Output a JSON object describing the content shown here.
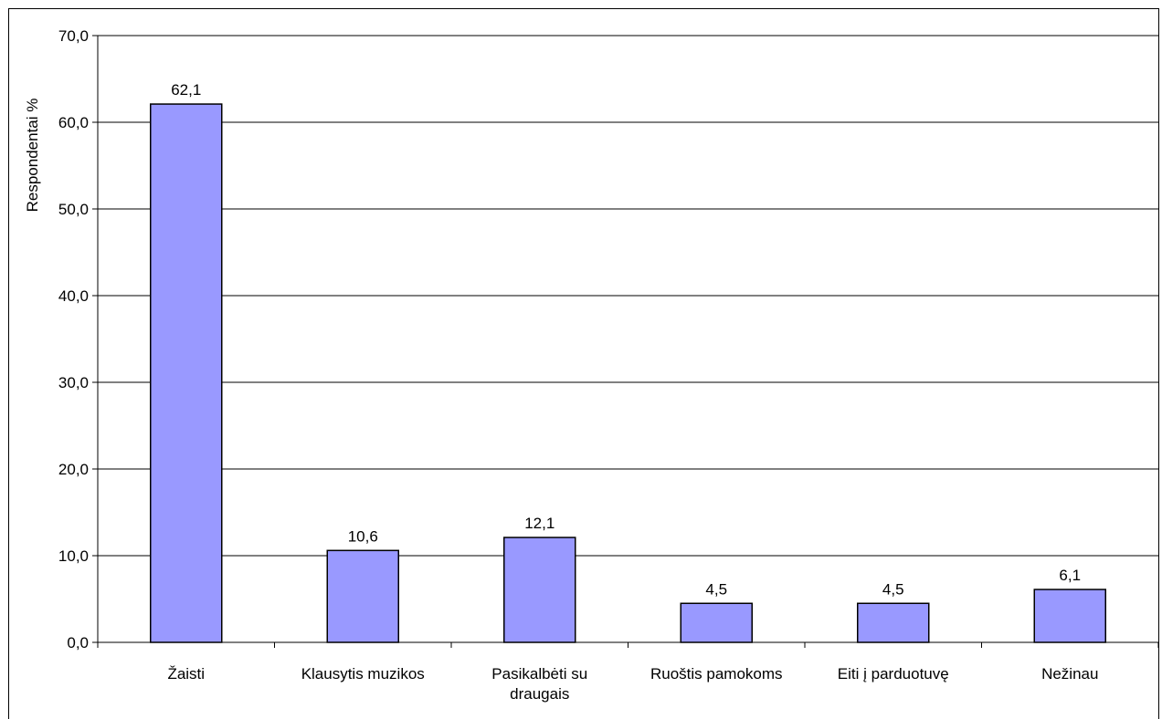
{
  "chart_data": {
    "type": "bar",
    "categories": [
      [
        "Žaisti"
      ],
      [
        "Klausytis muzikos"
      ],
      [
        "Pasikalbėti su",
        "draugais"
      ],
      [
        "Ruoštis pamokoms"
      ],
      [
        "Eiti į parduotuvę"
      ],
      [
        "Nežinau"
      ]
    ],
    "values": [
      62.1,
      10.6,
      12.1,
      4.5,
      4.5,
      6.1
    ],
    "value_labels": [
      "62,1",
      "10,6",
      "12,1",
      "4,5",
      "4,5",
      "6,1"
    ],
    "ylabel": "Respondentai  %",
    "xlabel": "",
    "title": "",
    "ylim": [
      0,
      70
    ],
    "yticks": [
      0,
      10,
      20,
      30,
      40,
      50,
      60,
      70
    ],
    "ytick_labels": [
      "0,0",
      "10,0",
      "20,0",
      "30,0",
      "40,0",
      "50,0",
      "60,0",
      "70,0"
    ],
    "grid": true,
    "legend": "none",
    "bar_color": "#9999ff",
    "bar_border_color": "#000000"
  }
}
